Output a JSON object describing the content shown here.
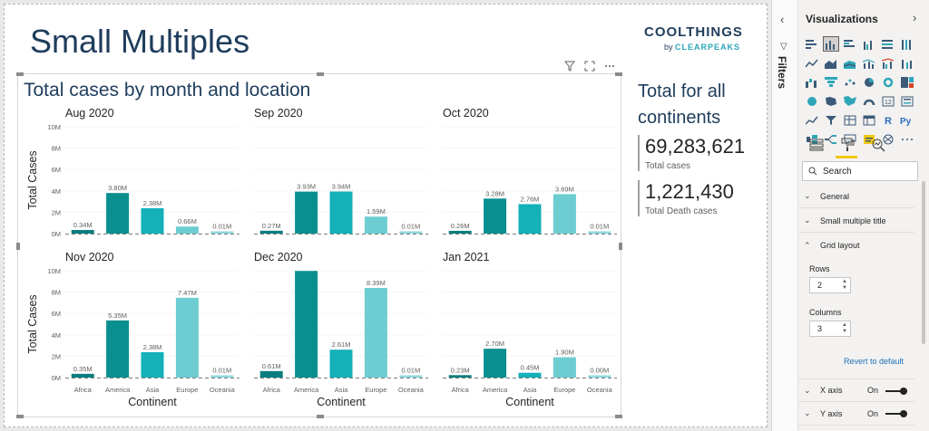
{
  "page": {
    "title": "Small Multiples",
    "logo": {
      "main": "COOLTHINGS",
      "by": "by",
      "brand": "CLEARPEAKS"
    }
  },
  "visual_header": {
    "icons": [
      "filter-icon",
      "focus-mode-icon",
      "more-options-icon"
    ]
  },
  "chart_data": {
    "type": "bar",
    "title": "Total cases by month and location",
    "xlabel": "Continent",
    "ylabel": "Total Cases",
    "categories": [
      "Africa",
      "America",
      "Asia",
      "Europe",
      "Oceania"
    ],
    "yticks": [
      "0M",
      "2M",
      "4M",
      "6M",
      "8M",
      "10M"
    ],
    "ylim": [
      0,
      10
    ],
    "grid": true,
    "colors": [
      "#0a7e7e",
      "#0a8f8f",
      "#14b1b9",
      "#6dcdd1",
      "#8fd8dc"
    ],
    "panels": [
      {
        "title": "Aug 2020",
        "values": [
          0.34,
          3.8,
          2.38,
          0.66,
          0.01
        ],
        "labels": [
          "0.34M",
          "3.80M",
          "2.38M",
          "0.66M",
          "0.01M"
        ]
      },
      {
        "title": "Sep 2020",
        "values": [
          0.27,
          3.93,
          3.94,
          1.59,
          0.01
        ],
        "labels": [
          "0.27M",
          "3.93M",
          "3.94M",
          "1.59M",
          "0.01M"
        ]
      },
      {
        "title": "Oct 2020",
        "values": [
          0.26,
          3.28,
          2.76,
          3.69,
          0.01
        ],
        "labels": [
          "0.26M",
          "3.28M",
          "2.76M",
          "3.69M",
          "0.01M"
        ]
      },
      {
        "title": "Nov 2020",
        "values": [
          0.35,
          5.35,
          2.38,
          7.47,
          0.01
        ],
        "labels": [
          "0.35M",
          "5.35M",
          "2.38M",
          "7.47M",
          "0.01M"
        ]
      },
      {
        "title": "Dec 2020",
        "values": [
          0.61,
          9.98,
          2.61,
          8.39,
          0.01
        ],
        "labels": [
          "0.61M",
          "",
          "2.61M",
          "8.39M",
          "0.01M"
        ]
      },
      {
        "title": "Jan 2021",
        "values": [
          0.23,
          2.7,
          0.45,
          1.9,
          0.0
        ],
        "labels": [
          "0.23M",
          "2.70M",
          "0.45M",
          "1.90M",
          "0.00M"
        ]
      }
    ]
  },
  "card": {
    "title": "Total for all continents",
    "kpis": [
      {
        "value": "69,283,621",
        "label": "Total cases"
      },
      {
        "value": "1,221,430",
        "label": "Total Death cases"
      }
    ]
  },
  "filters": {
    "label": "Filters"
  },
  "viz_pane": {
    "title": "Visualizations",
    "search_placeholder": "Search",
    "sections": {
      "general": "General",
      "small_multiple_title": "Small multiple title",
      "grid_layout": "Grid layout",
      "x_axis": "X axis",
      "y_axis": "Y axis"
    },
    "grid_layout": {
      "rows_label": "Rows",
      "rows_value": "2",
      "columns_label": "Columns",
      "columns_value": "3"
    },
    "revert_label": "Revert to default",
    "x_axis_state": "On",
    "y_axis_state": "On"
  }
}
